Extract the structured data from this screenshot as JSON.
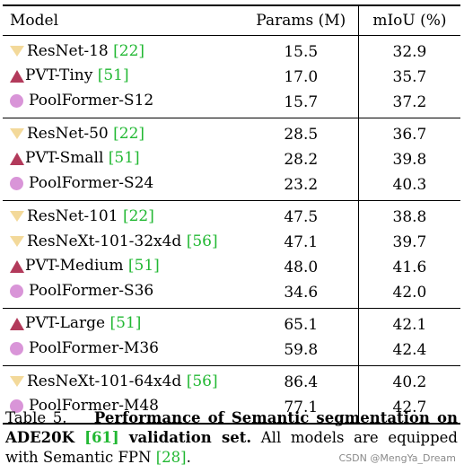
{
  "table": {
    "headers": {
      "model": "Model",
      "params": "Params (M)",
      "miou": "mIoU (%)"
    },
    "groups": [
      {
        "rows": [
          {
            "marker": "triangle-down",
            "model": "ResNet-18 ",
            "cite": "[22]",
            "params": "15.5",
            "miou": "32.9"
          },
          {
            "marker": "triangle-up",
            "model": "PVT-Tiny ",
            "cite": "[51]",
            "params": "17.0",
            "miou": "35.7"
          },
          {
            "marker": "circle",
            "model": "PoolFormer-S12",
            "cite": "",
            "params": "15.7",
            "miou": "37.2"
          }
        ]
      },
      {
        "rows": [
          {
            "marker": "triangle-down",
            "model": "ResNet-50 ",
            "cite": "[22]",
            "params": "28.5",
            "miou": "36.7"
          },
          {
            "marker": "triangle-up",
            "model": "PVT-Small ",
            "cite": "[51]",
            "params": "28.2",
            "miou": "39.8"
          },
          {
            "marker": "circle",
            "model": "PoolFormer-S24",
            "cite": "",
            "params": "23.2",
            "miou": "40.3"
          }
        ]
      },
      {
        "rows": [
          {
            "marker": "triangle-down",
            "model": "ResNet-101 ",
            "cite": "[22]",
            "params": "47.5",
            "miou": "38.8"
          },
          {
            "marker": "triangle-down",
            "model": "ResNeXt-101-32x4d ",
            "cite": "[56]",
            "params": "47.1",
            "miou": "39.7"
          },
          {
            "marker": "triangle-up",
            "model": "PVT-Medium ",
            "cite": "[51]",
            "params": "48.0",
            "miou": "41.6"
          },
          {
            "marker": "circle",
            "model": "PoolFormer-S36",
            "cite": "",
            "params": "34.6",
            "miou": "42.0"
          }
        ]
      },
      {
        "rows": [
          {
            "marker": "triangle-up",
            "model": "PVT-Large ",
            "cite": "[51]",
            "params": "65.1",
            "miou": "42.1"
          },
          {
            "marker": "circle",
            "model": "PoolFormer-M36",
            "cite": "",
            "params": "59.8",
            "miou": "42.4"
          }
        ]
      },
      {
        "rows": [
          {
            "marker": "triangle-down",
            "model": "ResNeXt-101-64x4d ",
            "cite": "[56]",
            "params": "86.4",
            "miou": "40.2"
          },
          {
            "marker": "circle",
            "model": "PoolFormer-M48",
            "cite": "",
            "params": "77.1",
            "miou": "42.7"
          }
        ]
      }
    ]
  },
  "caption": {
    "label": "Table 5.",
    "bold_part1": "Performance of Semantic segmentation on ADE20K ",
    "bold_cite": "[61]",
    "bold_part2": " validation set.",
    "rest": " All models are equipped with Semantic FPN ",
    "rest_cite": "[28]",
    "rest_end": "."
  },
  "watermark": "CSDN @MengYa_Dream",
  "colors": {
    "cite": "#22b833",
    "triangle_down": "#f3d99a",
    "triangle_up": "#b23a5b",
    "circle": "#d995d8"
  }
}
